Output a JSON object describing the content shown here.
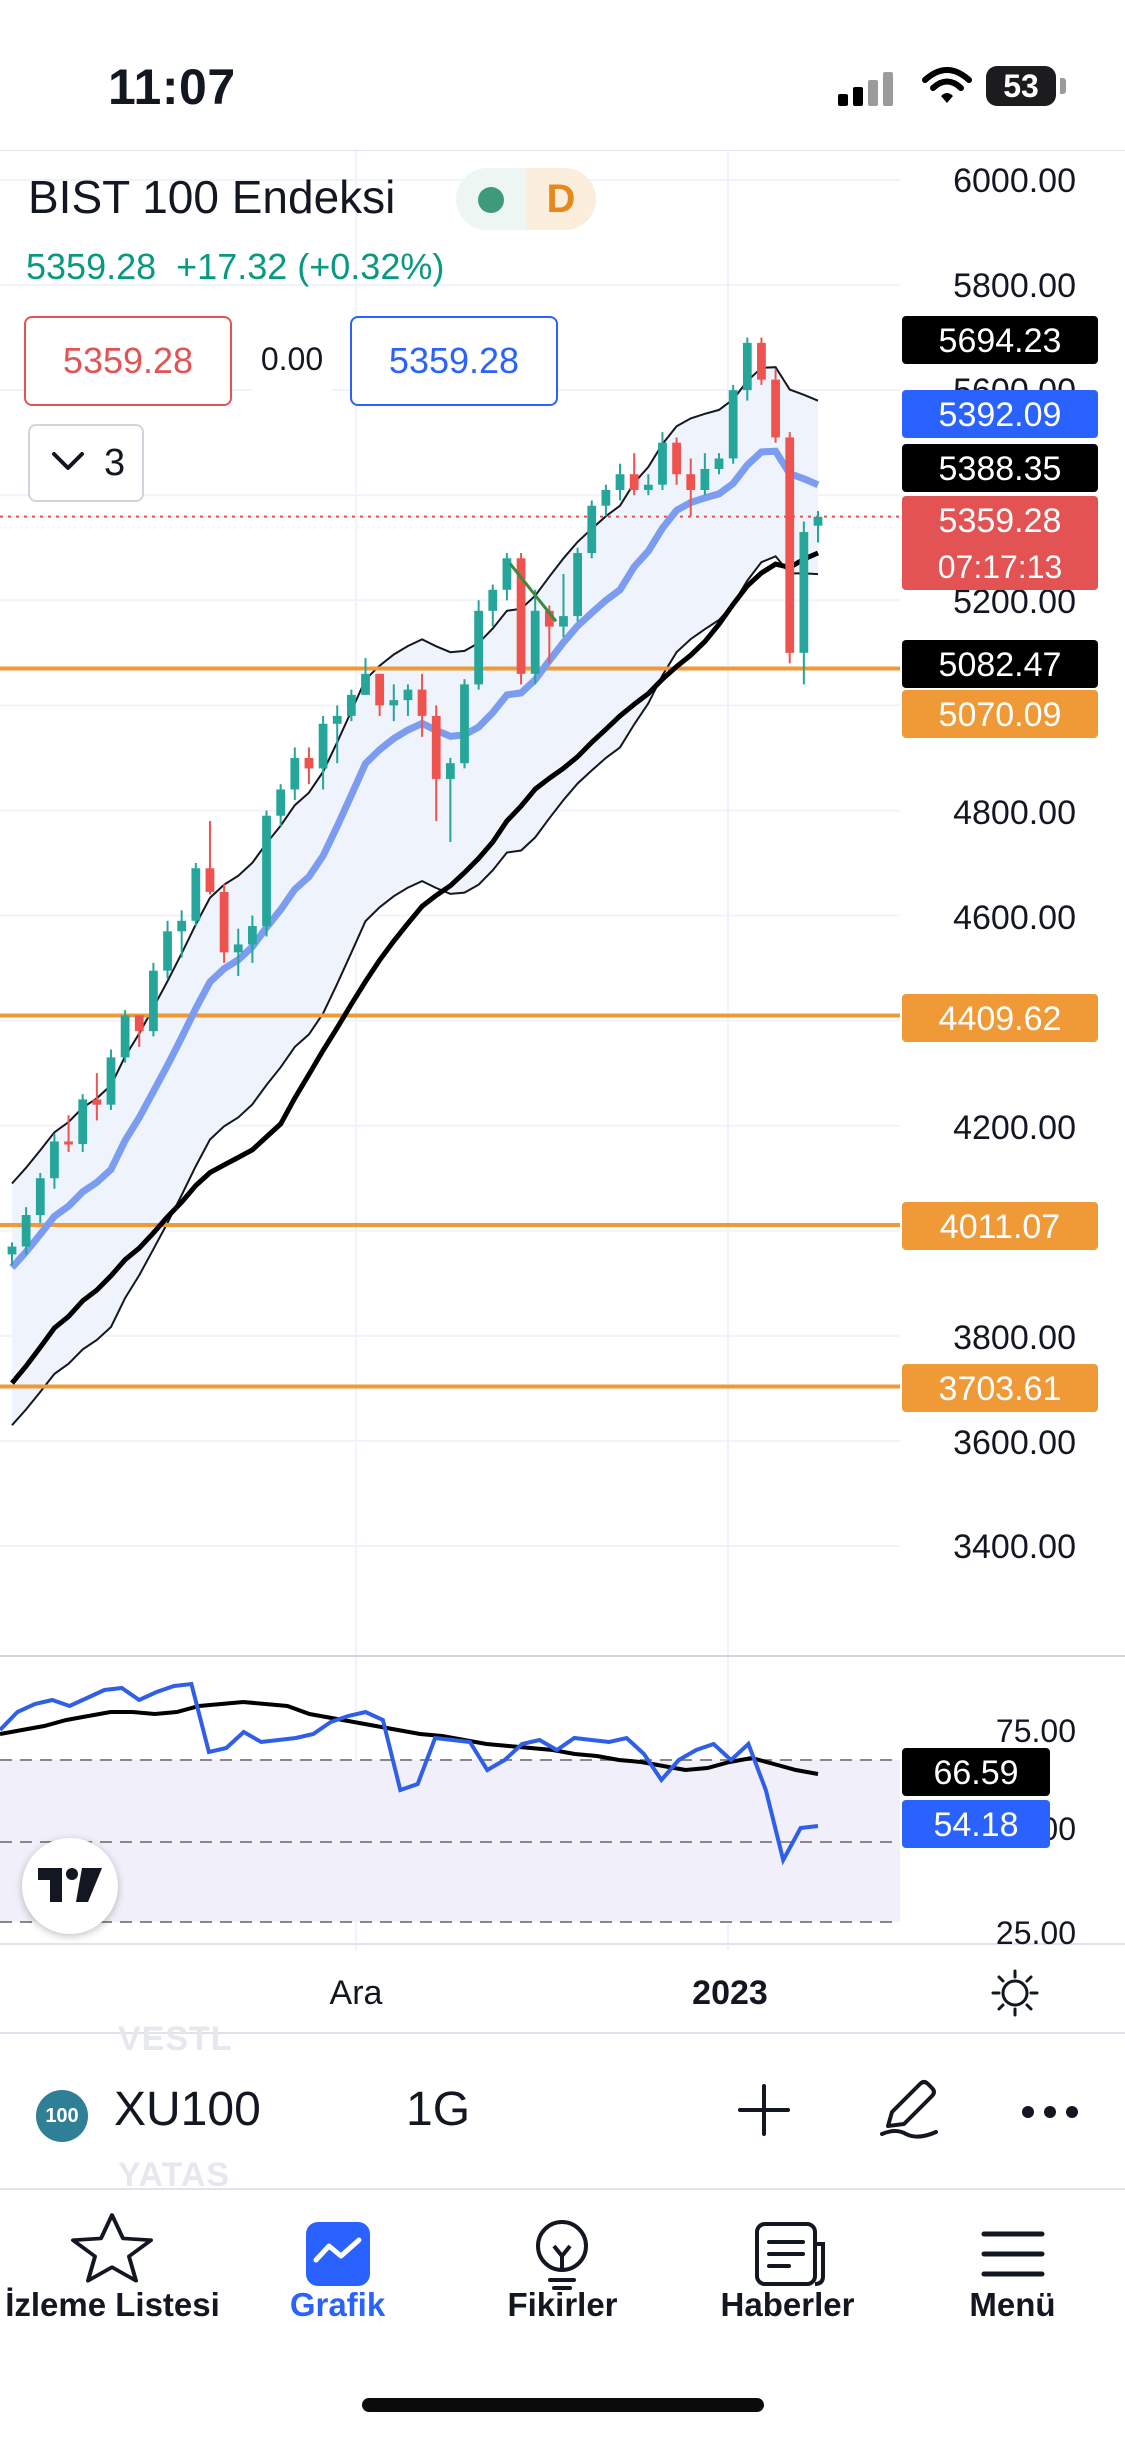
{
  "status_bar": {
    "time": "11:07",
    "battery": "53"
  },
  "header": {
    "title": "BIST 100 Endeksi",
    "timeframe_badge": "D",
    "last_price": "5359.28",
    "change": "+17.32 (+0.32%)",
    "sell_price": "5359.28",
    "spread": "0.00",
    "buy_price": "5359.28",
    "indicator_count": "3"
  },
  "chart_data": {
    "type": "candlestick",
    "price_axis_ticks": [
      "6000.00",
      "5800.00",
      "5600.00",
      "5200.00",
      "4800.00",
      "4600.00",
      "4200.00",
      "3800.00",
      "3600.00",
      "3400.00"
    ],
    "price_labels": [
      {
        "value": 5694.23,
        "text": "5694.23",
        "color": "#000000"
      },
      {
        "value": 5392.09,
        "text": "5392.09",
        "color": "#2962ff"
      },
      {
        "value": 5388.35,
        "text": "5388.35",
        "color": "#000000"
      },
      {
        "value": 5359.28,
        "text": "5359.28",
        "sub": "07:17:13",
        "color": "#e35353"
      },
      {
        "value": 5082.47,
        "text": "5082.47",
        "color": "#000000"
      },
      {
        "value": 5070.09,
        "text": "5070.09",
        "color": "#f09a37"
      },
      {
        "value": 4409.62,
        "text": "4409.62",
        "color": "#f09a37"
      },
      {
        "value": 4011.07,
        "text": "4011.07",
        "color": "#f09a37"
      },
      {
        "value": 3703.61,
        "text": "3703.61",
        "color": "#f09a37"
      }
    ],
    "horizontal_lines": [
      5070.09,
      4409.62,
      4011.07,
      3703.61
    ],
    "current_price_line": 5359.28,
    "time_labels": [
      "Ara",
      "2023"
    ],
    "candles": [
      [
        3955,
        3978,
        3935,
        3970
      ],
      [
        3970,
        4045,
        3955,
        4030
      ],
      [
        4030,
        4110,
        4015,
        4100
      ],
      [
        4100,
        4185,
        4080,
        4170
      ],
      [
        4170,
        4220,
        4150,
        4165
      ],
      [
        4165,
        4260,
        4150,
        4250
      ],
      [
        4250,
        4300,
        4210,
        4240
      ],
      [
        4240,
        4345,
        4230,
        4330
      ],
      [
        4330,
        4420,
        4320,
        4410
      ],
      [
        4410,
        4400,
        4350,
        4380
      ],
      [
        4380,
        4510,
        4370,
        4495
      ],
      [
        4495,
        4590,
        4480,
        4570
      ],
      [
        4570,
        4610,
        4520,
        4590
      ],
      [
        4590,
        4700,
        4580,
        4690
      ],
      [
        4690,
        4780,
        4640,
        4645
      ],
      [
        4645,
        4660,
        4510,
        4530
      ],
      [
        4530,
        4575,
        4485,
        4545
      ],
      [
        4545,
        4600,
        4510,
        4580
      ],
      [
        4580,
        4800,
        4560,
        4790
      ],
      [
        4790,
        4850,
        4770,
        4840
      ],
      [
        4840,
        4920,
        4820,
        4900
      ],
      [
        4900,
        4920,
        4850,
        4880
      ],
      [
        4880,
        4980,
        4840,
        4965
      ],
      [
        4965,
        5000,
        4890,
        4980
      ],
      [
        4980,
        5030,
        4970,
        5020
      ],
      [
        5020,
        5090,
        5030,
        5060
      ],
      [
        5060,
        5060,
        4980,
        5000
      ],
      [
        5000,
        5040,
        4970,
        5010
      ],
      [
        5010,
        5040,
        4980,
        5030
      ],
      [
        5030,
        5060,
        4940,
        4980
      ],
      [
        4980,
        5000,
        4780,
        4860
      ],
      [
        4860,
        4900,
        4740,
        4890
      ],
      [
        4890,
        5050,
        4880,
        5040
      ],
      [
        5040,
        5200,
        5030,
        5180
      ],
      [
        5180,
        5230,
        5150,
        5220
      ],
      [
        5220,
        5290,
        5200,
        5280
      ],
      [
        5280,
        5290,
        5040,
        5060
      ],
      [
        5060,
        5220,
        5040,
        5180
      ],
      [
        5180,
        5190,
        5080,
        5150
      ],
      [
        5150,
        5250,
        5130,
        5170
      ],
      [
        5170,
        5300,
        5160,
        5290
      ],
      [
        5290,
        5390,
        5280,
        5380
      ],
      [
        5380,
        5420,
        5360,
        5410
      ],
      [
        5410,
        5460,
        5390,
        5440
      ],
      [
        5440,
        5480,
        5400,
        5410
      ],
      [
        5410,
        5440,
        5400,
        5420
      ],
      [
        5420,
        5520,
        5410,
        5500
      ],
      [
        5500,
        5510,
        5420,
        5440
      ],
      [
        5440,
        5470,
        5360,
        5410
      ],
      [
        5410,
        5480,
        5400,
        5450
      ],
      [
        5450,
        5480,
        5440,
        5470
      ],
      [
        5470,
        5610,
        5460,
        5600
      ],
      [
        5600,
        5700,
        5580,
        5690
      ],
      [
        5690,
        5700,
        5610,
        5620
      ],
      [
        5620,
        5640,
        5500,
        5510
      ],
      [
        5510,
        5520,
        5080,
        5100
      ],
      [
        5100,
        5350,
        5040,
        5330
      ],
      [
        5342,
        5370,
        5310,
        5359
      ]
    ],
    "rsi_ticks": [
      "75.00",
      "50.00",
      "25.00"
    ],
    "rsi_labels": [
      {
        "text": "66.59",
        "color": "#000000"
      },
      {
        "text": "54.18",
        "color": "#2962ff"
      }
    ]
  },
  "toolbar": {
    "symbol_badge": "100",
    "symbol": "XU100",
    "interval": "1G",
    "ghost_top": "VESTL",
    "ghost_bottom": "YATAS"
  },
  "tabs": [
    {
      "label": "İzleme Listesi"
    },
    {
      "label": "Grafik"
    },
    {
      "label": "Fikirler"
    },
    {
      "label": "Haberler"
    },
    {
      "label": "Menü"
    }
  ],
  "colors": {
    "up": "#26a69a",
    "down": "#ef5350",
    "accent": "#2962ff",
    "level": "#f09a37",
    "ma_blue": "#7b9cf0"
  }
}
